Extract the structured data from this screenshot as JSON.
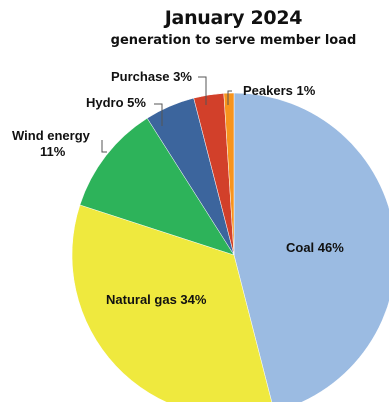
{
  "title": "January 2024",
  "subtitle": "generation to serve member load",
  "colors": {
    "coal": "#9bbbe2",
    "natural_gas": "#efe93e",
    "wind": "#2db35a",
    "hydro": "#3c659d",
    "purchase": "#d2402a",
    "peakers": "#f7941d"
  },
  "labels": {
    "coal": "Coal 46%",
    "natural_gas": "Natural gas 34%",
    "wind_line1": "Wind energy",
    "wind_line2": "11%",
    "hydro": "Hydro 5%",
    "purchase": "Purchase 3%",
    "peakers": "Peakers 1%"
  },
  "chart_data": {
    "type": "pie",
    "title": "January 2024",
    "subtitle": "generation to serve member load",
    "slices": [
      {
        "name": "Coal",
        "value": 46,
        "color": "#9bbbe2"
      },
      {
        "name": "Natural gas",
        "value": 34,
        "color": "#efe93e"
      },
      {
        "name": "Wind energy",
        "value": 11,
        "color": "#2db35a"
      },
      {
        "name": "Hydro",
        "value": 5,
        "color": "#3c659d"
      },
      {
        "name": "Purchase",
        "value": 3,
        "color": "#d2402a"
      },
      {
        "name": "Peakers",
        "value": 1,
        "color": "#f7941d"
      }
    ]
  }
}
